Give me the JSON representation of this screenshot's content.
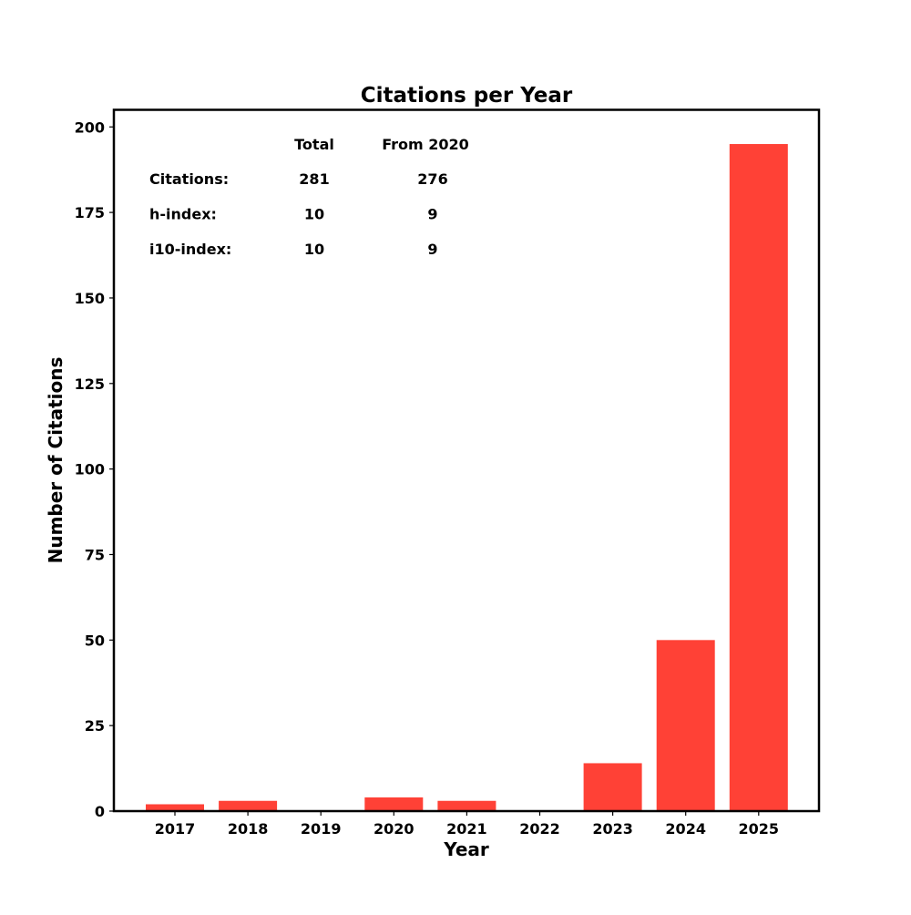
{
  "chart_data": {
    "type": "bar",
    "title": "Citations per Year",
    "xlabel": "Year",
    "ylabel": "Number of Citations",
    "categories": [
      "2017",
      "2018",
      "2019",
      "2020",
      "2021",
      "2022",
      "2023",
      "2024",
      "2025"
    ],
    "values": [
      2,
      3,
      0,
      4,
      3,
      0,
      14,
      50,
      195
    ],
    "ylim": [
      0,
      205
    ],
    "yticks": [
      0,
      25,
      50,
      75,
      100,
      125,
      150,
      175,
      200
    ],
    "bar_color": "#ff4136",
    "grid": false,
    "stats_table": {
      "headers": [
        "",
        "Total",
        "From 2020"
      ],
      "rows": [
        [
          "Citations:",
          "281",
          "276"
        ],
        [
          "h-index:",
          "10",
          "9"
        ],
        [
          "i10-index:",
          "10",
          "9"
        ]
      ]
    }
  }
}
